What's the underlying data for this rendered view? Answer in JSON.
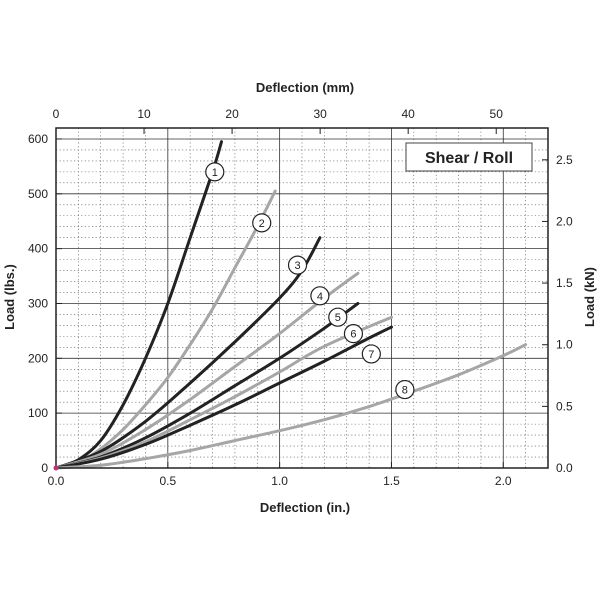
{
  "chart_data": {
    "type": "line",
    "title": "Shear / Roll",
    "xlabel": "Deflection (in.)",
    "ylabel": "Load (lbs.)",
    "x2label": "Deflection (mm)",
    "y2label": "Load (kN)",
    "xlim": [
      0,
      2.2
    ],
    "ylim": [
      0,
      620
    ],
    "x2lim": [
      0,
      55.88
    ],
    "y2lim": [
      0,
      2.758
    ],
    "xticks": [
      "0.0",
      "0.5",
      "1.0",
      "1.5",
      "2.0"
    ],
    "yticks": [
      "0",
      "100",
      "200",
      "300",
      "400",
      "500",
      "600"
    ],
    "x2ticks": [
      "0",
      "10",
      "20",
      "30",
      "40",
      "50"
    ],
    "y2ticks": [
      "0.0",
      "0.5",
      "1.0",
      "1.5",
      "2.0",
      "2.5"
    ],
    "grid": true,
    "series": [
      {
        "name": "1",
        "color": "#222222",
        "label_at": [
          0.71,
          540
        ],
        "points": [
          [
            0,
            0
          ],
          [
            0.1,
            15
          ],
          [
            0.2,
            50
          ],
          [
            0.3,
            115
          ],
          [
            0.4,
            200
          ],
          [
            0.5,
            300
          ],
          [
            0.6,
            420
          ],
          [
            0.7,
            540
          ],
          [
            0.74,
            595
          ]
        ]
      },
      {
        "name": "2",
        "color": "#a6a6a6",
        "label_at": [
          0.92,
          447
        ],
        "points": [
          [
            0,
            0
          ],
          [
            0.1,
            10
          ],
          [
            0.2,
            35
          ],
          [
            0.3,
            70
          ],
          [
            0.4,
            115
          ],
          [
            0.5,
            165
          ],
          [
            0.6,
            225
          ],
          [
            0.7,
            290
          ],
          [
            0.8,
            365
          ],
          [
            0.9,
            440
          ],
          [
            0.98,
            505
          ]
        ]
      },
      {
        "name": "3",
        "color": "#222222",
        "label_at": [
          1.08,
          370
        ],
        "points": [
          [
            0,
            0
          ],
          [
            0.2,
            30
          ],
          [
            0.4,
            85
          ],
          [
            0.6,
            155
          ],
          [
            0.8,
            230
          ],
          [
            1.0,
            310
          ],
          [
            1.1,
            360
          ],
          [
            1.18,
            420
          ]
        ]
      },
      {
        "name": "4",
        "color": "#a6a6a6",
        "label_at": [
          1.18,
          314
        ],
        "points": [
          [
            0,
            0
          ],
          [
            0.2,
            25
          ],
          [
            0.4,
            70
          ],
          [
            0.6,
            125
          ],
          [
            0.8,
            185
          ],
          [
            1.0,
            245
          ],
          [
            1.2,
            310
          ],
          [
            1.35,
            355
          ]
        ]
      },
      {
        "name": "5",
        "color": "#222222",
        "label_at": [
          1.26,
          275
        ],
        "points": [
          [
            0,
            0
          ],
          [
            0.2,
            20
          ],
          [
            0.4,
            55
          ],
          [
            0.6,
            100
          ],
          [
            0.8,
            150
          ],
          [
            1.0,
            200
          ],
          [
            1.2,
            255
          ],
          [
            1.35,
            300
          ]
        ]
      },
      {
        "name": "6",
        "color": "#a6a6a6",
        "label_at": [
          1.33,
          245
        ],
        "points": [
          [
            0,
            0
          ],
          [
            0.2,
            18
          ],
          [
            0.4,
            48
          ],
          [
            0.6,
            88
          ],
          [
            0.8,
            130
          ],
          [
            1.0,
            175
          ],
          [
            1.2,
            222
          ],
          [
            1.5,
            275
          ]
        ]
      },
      {
        "name": "7",
        "color": "#222222",
        "label_at": [
          1.41,
          208
        ],
        "points": [
          [
            0,
            0
          ],
          [
            0.2,
            16
          ],
          [
            0.4,
            43
          ],
          [
            0.6,
            78
          ],
          [
            0.8,
            115
          ],
          [
            1.0,
            155
          ],
          [
            1.2,
            195
          ],
          [
            1.4,
            237
          ],
          [
            1.5,
            257
          ]
        ]
      },
      {
        "name": "8",
        "color": "#a6a6a6",
        "label_at": [
          1.56,
          143
        ],
        "points": [
          [
            0,
            0
          ],
          [
            0.2,
            5
          ],
          [
            0.4,
            17
          ],
          [
            0.6,
            32
          ],
          [
            0.8,
            50
          ],
          [
            1.0,
            68
          ],
          [
            1.2,
            88
          ],
          [
            1.4,
            112
          ],
          [
            1.6,
            140
          ],
          [
            1.8,
            170
          ],
          [
            2.0,
            205
          ],
          [
            2.1,
            225
          ]
        ]
      }
    ]
  }
}
